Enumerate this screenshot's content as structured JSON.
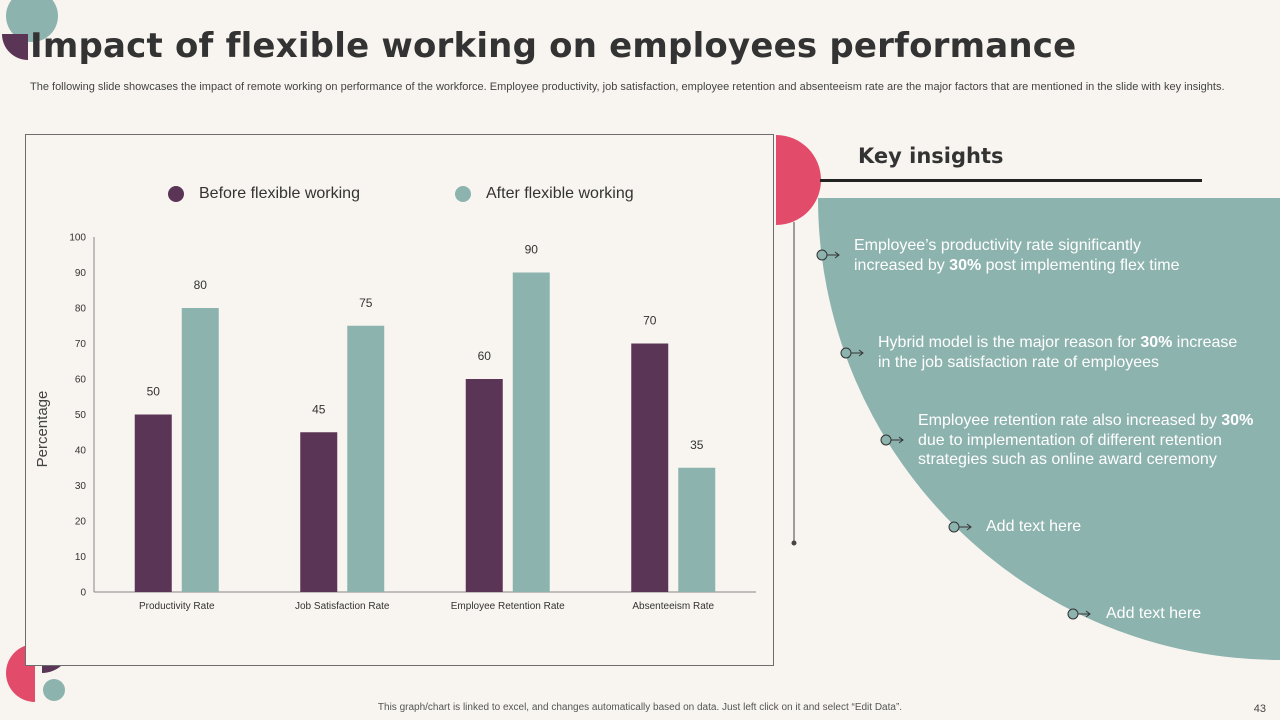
{
  "header": {
    "title": "Impact of flexible working on employees performance",
    "subtitle": "The following slide showcases the impact of remote working on performance of the workforce. Employee productivity, job satisfaction, employee retention and absenteeism rate are the major factors that are mentioned in the slide with key insights."
  },
  "colors": {
    "before": "#5b3556",
    "after": "#8db3af",
    "accent": "#e24c6a",
    "panel": "#8db3af",
    "background": "#f8f5f0"
  },
  "chart_data": {
    "type": "bar",
    "categories": [
      "Productivity Rate",
      "Job Satisfaction Rate",
      "Employee Retention Rate",
      "Absenteeism Rate"
    ],
    "series": [
      {
        "name": "Before flexible working",
        "values": [
          50,
          45,
          60,
          70
        ]
      },
      {
        "name": "After flexible working",
        "values": [
          80,
          75,
          90,
          35
        ]
      }
    ],
    "title": "",
    "xlabel": "",
    "ylabel": "Percentage",
    "ylim": [
      0,
      100
    ],
    "yticks": [
      0,
      10,
      20,
      30,
      40,
      50,
      60,
      70,
      80,
      90,
      100
    ],
    "legend": "top",
    "grid": false
  },
  "insights": {
    "title": "Key insights",
    "items": [
      {
        "before": "Employee’s productivity rate significantly increased by ",
        "highlight": "30%",
        "after": " post implementing flex time"
      },
      {
        "before": "Hybrid model is the major reason for ",
        "highlight": "30%",
        "after": " increase in the job satisfaction rate of employees"
      },
      {
        "before": "Employee retention rate also increased by ",
        "highlight": "30%",
        "after": " due to implementation of different retention strategies such as online award ceremony"
      },
      {
        "before": "Add text here",
        "highlight": "",
        "after": ""
      },
      {
        "before": "Add text here",
        "highlight": "",
        "after": ""
      }
    ]
  },
  "footer": {
    "note": "This graph/chart is linked to excel, and changes automatically based on data. Just left click on it and select “Edit Data”.",
    "page_number": "43"
  }
}
